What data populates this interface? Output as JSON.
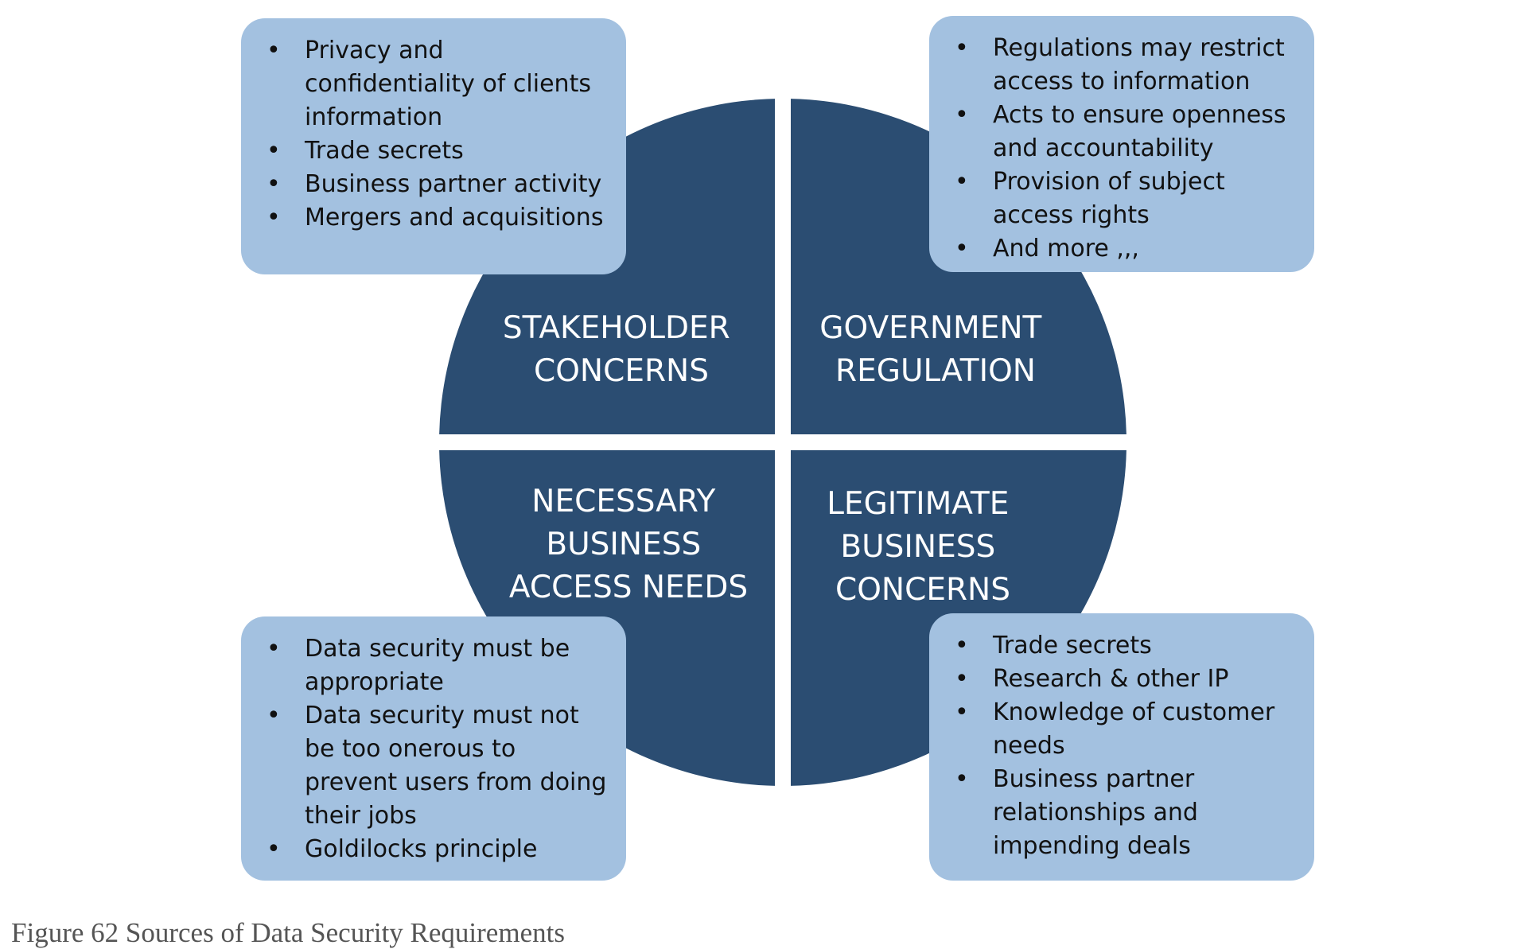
{
  "quadrants": {
    "top_left": [
      "STAKEHOLDER",
      "CONCERNS"
    ],
    "top_right": [
      "GOVERNMENT",
      "REGULATION"
    ],
    "bottom_left": [
      "NECESSARY",
      "BUSINESS",
      "ACCESS NEEDS"
    ],
    "bottom_right": [
      "LEGITIMATE",
      "BUSINESS",
      "CONCERNS"
    ]
  },
  "boxes": {
    "top_left": [
      "Privacy and confidentiality of clients information",
      "Trade secrets",
      "Business partner activity",
      "Mergers and acquisitions"
    ],
    "top_right": [
      "Regulations may restrict access to information",
      "Acts to ensure openness and accountability",
      "Provision of subject access rights",
      "And more ,,,"
    ],
    "bottom_left": [
      "Data security must be appropriate",
      "Data security must not be too onerous to prevent users from doing their jobs",
      "Goldilocks principle"
    ],
    "bottom_right": [
      "Trade secrets",
      "Research & other IP",
      "Knowledge of customer needs",
      "Business partner relationships and impending deals"
    ]
  },
  "caption": "Figure 62 Sources of Data Security Requirements",
  "colors": {
    "quadrant_fill": "#2b4d72",
    "box_fill": "#a3c1e0",
    "label_text": "#ffffff"
  }
}
